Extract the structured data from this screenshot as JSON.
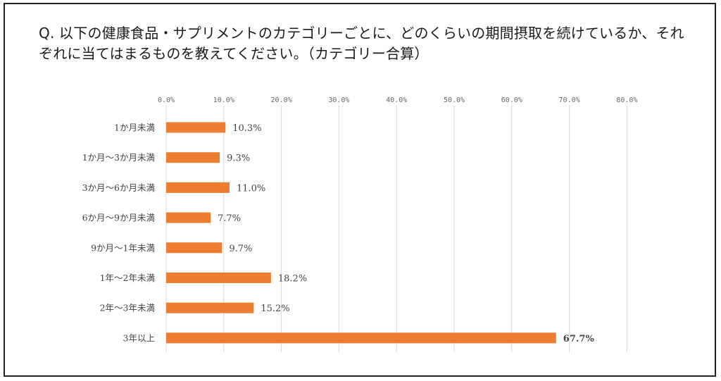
{
  "question": "Q. 以下の健康食品・サプリメントのカテゴリーごとに、どのくらいの期間摂取を続けているか、それぞれに当てはまるものを教えてください。（カテゴリー合算）",
  "colors": {
    "bar": "#ED7D31",
    "highlight_label": "#E8151B",
    "grid": "#D9D9D9",
    "border": "#222222"
  },
  "chart_data": {
    "type": "bar",
    "orientation": "horizontal",
    "categories": [
      "1か月未満",
      "1か月〜3か月未満",
      "3か月〜6か月未満",
      "6か月〜9か月未満",
      "9か月〜1年未満",
      "1年〜2年未満",
      "2年〜3年未満",
      "3年以上"
    ],
    "values": [
      10.3,
      9.3,
      11.0,
      7.7,
      9.7,
      18.2,
      15.2,
      67.7
    ],
    "value_labels": [
      "10.3%",
      "9.3%",
      "11.0%",
      "7.7%",
      "9.7%",
      "18.2%",
      "15.2%",
      "67.7%"
    ],
    "highlight_index": 7,
    "xlim": [
      0,
      80
    ],
    "x_ticks": [
      "0.0%",
      "10.0%",
      "20.0%",
      "30.0%",
      "40.0%",
      "50.0%",
      "60.0%",
      "70.0%",
      "80.0%"
    ],
    "x_axis_position": "top",
    "grid": true,
    "legend": false
  }
}
